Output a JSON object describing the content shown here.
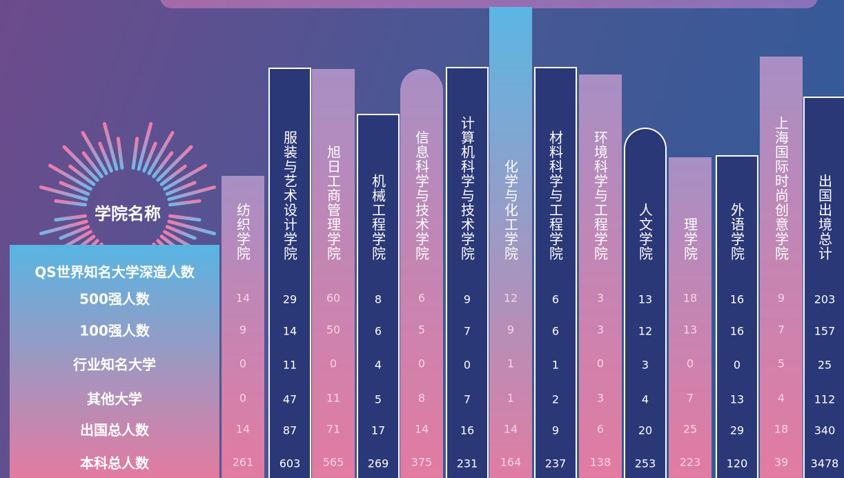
{
  "header_label": "学院名称",
  "group_label": "QS世界知名大学深造人数",
  "row_labels": [
    "500强人数",
    "100强人数",
    "行业知名大学",
    "其他大学",
    "出国总人数",
    "本科总人数"
  ],
  "columns": [
    {
      "name": "纺织学院",
      "values": [
        14,
        9,
        0,
        0,
        14,
        261
      ]
    },
    {
      "name": "服装与艺术设计学院",
      "values": [
        29,
        14,
        11,
        47,
        87,
        603
      ]
    },
    {
      "name": "旭日工商管理学院",
      "values": [
        60,
        50,
        0,
        11,
        71,
        565
      ]
    },
    {
      "name": "机械工程学院",
      "values": [
        8,
        6,
        4,
        5,
        17,
        269
      ]
    },
    {
      "name": "信息科学与技术学院",
      "values": [
        6,
        5,
        0,
        8,
        14,
        375
      ]
    },
    {
      "name": "计算机科学与技术学院",
      "values": [
        9,
        7,
        0,
        7,
        16,
        231
      ]
    },
    {
      "name": "化学与化工学院",
      "values": [
        12,
        9,
        1,
        1,
        14,
        164
      ]
    },
    {
      "name": "材料科学与工程学院",
      "values": [
        6,
        6,
        1,
        2,
        9,
        237
      ]
    },
    {
      "name": "环境科学与工程学院",
      "values": [
        3,
        3,
        0,
        3,
        6,
        138
      ]
    },
    {
      "name": "人文学院",
      "values": [
        13,
        12,
        3,
        4,
        20,
        253
      ]
    },
    {
      "name": "理学院",
      "values": [
        18,
        13,
        0,
        7,
        25,
        223
      ]
    },
    {
      "name": "外语学院",
      "values": [
        16,
        16,
        0,
        13,
        29,
        120
      ]
    },
    {
      "name": "上海国际时尚创意学院",
      "values": [
        9,
        7,
        5,
        4,
        18,
        39
      ]
    },
    {
      "name": "出国出境总计",
      "values": [
        203,
        157,
        25,
        112,
        340,
        3478
      ]
    }
  ]
}
